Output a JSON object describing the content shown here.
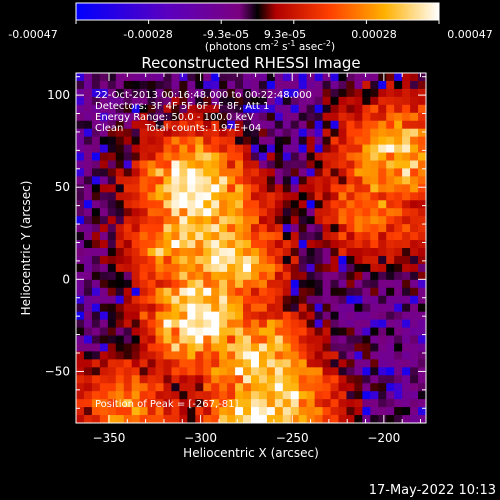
{
  "colorbar": {
    "ticks": [
      "-0.00047",
      "-0.00028",
      "-9.3e-05",
      "9.3e-05",
      "0.00028",
      "0.00047"
    ],
    "unit_label_parts": {
      "a": "(photons cm",
      "a_sup": "-2",
      "b": " s",
      "b_sup": "-1",
      "c": " asec",
      "c_sup": "-2",
      "d": ")"
    }
  },
  "annotations": {
    "time": "22-Oct-2013 00:16:48.000 to 00:22:48.000",
    "detectors": "Detectors: 3F 4F 5F 6F 7F 8F, Att 1",
    "energy": "Energy Range: 50.0 - 100.0 keV",
    "method": "Clean",
    "counts": "Total counts: 1.97E+04",
    "peak": "Position of Peak = [-267,-81]"
  },
  "timestamp": "17-May-2022 10:13",
  "chart_data": {
    "type": "heatmap",
    "title": "Reconstructed RHESSI Image",
    "xlabel": "Heliocentric X (arcsec)",
    "ylabel": "Heliocentric Y (arcsec)",
    "xlim": [
      -368,
      -177
    ],
    "ylim": [
      -78,
      112
    ],
    "xticks": [
      -350,
      -300,
      -250,
      -200
    ],
    "yticks": [
      -50,
      0,
      50,
      100
    ],
    "colorscale": {
      "min": -0.00047,
      "max": 0.00047,
      "colormap": "red-temperature"
    },
    "bright_regions": [
      {
        "x": -305,
        "y": 50,
        "level": 0.9
      },
      {
        "x": -295,
        "y": 35,
        "level": 0.85
      },
      {
        "x": -285,
        "y": 10,
        "level": 0.8
      },
      {
        "x": -300,
        "y": -20,
        "level": 0.95
      },
      {
        "x": -267,
        "y": -81,
        "level": 1.0
      },
      {
        "x": -270,
        "y": -45,
        "level": 0.85
      },
      {
        "x": -255,
        "y": -65,
        "level": 0.8
      },
      {
        "x": -310,
        "y": 20,
        "level": 0.7
      },
      {
        "x": -195,
        "y": 68,
        "level": 0.75
      },
      {
        "x": -205,
        "y": 40,
        "level": 0.55
      },
      {
        "x": -340,
        "y": -70,
        "level": 0.55
      }
    ]
  }
}
